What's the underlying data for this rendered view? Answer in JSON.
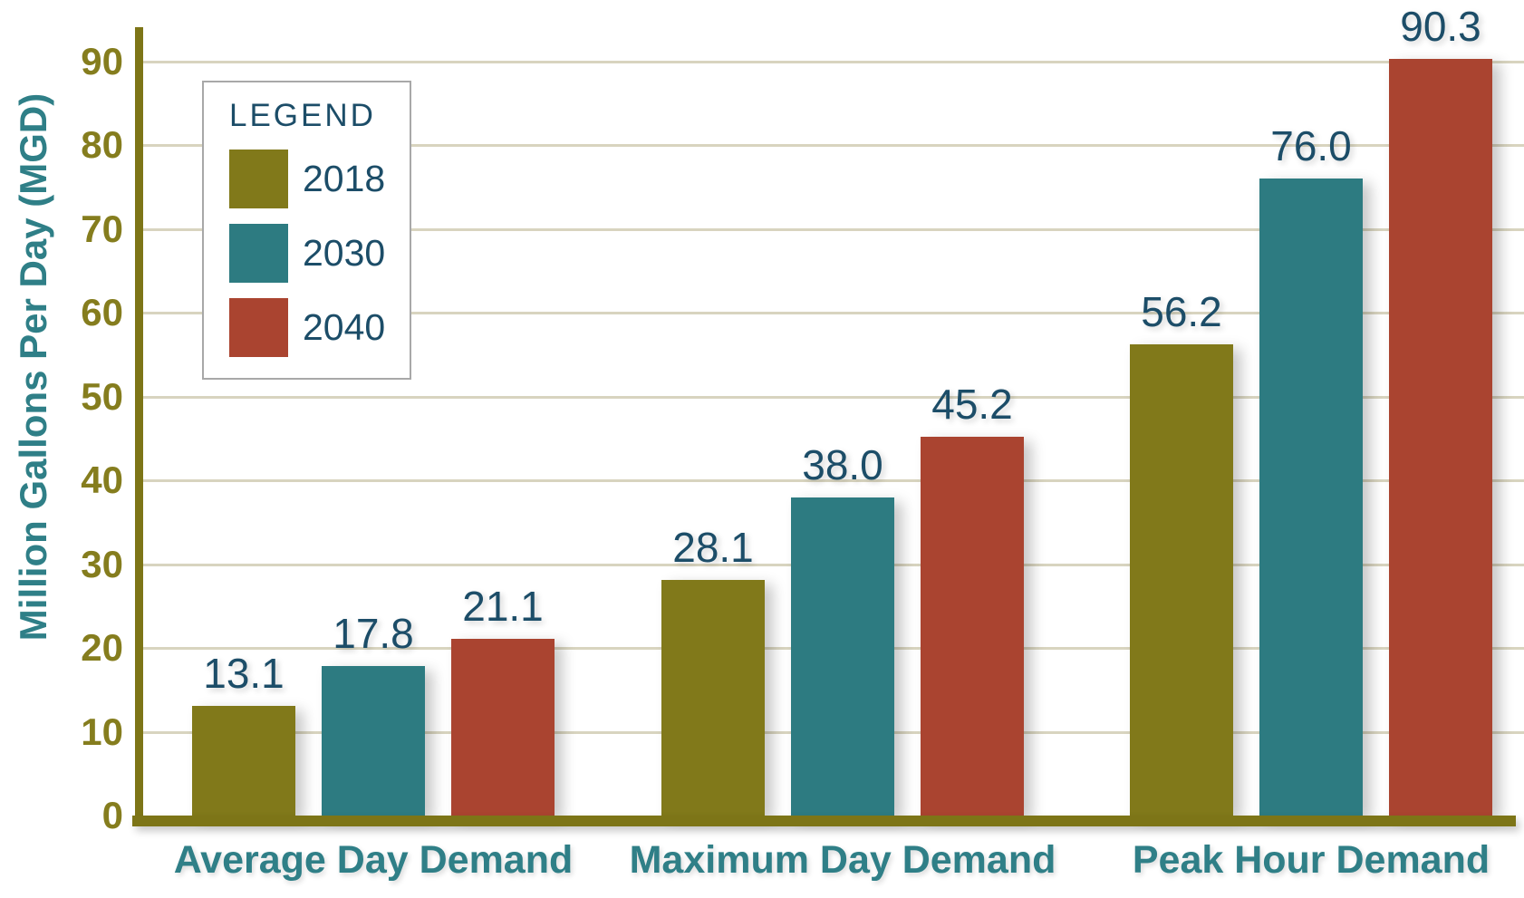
{
  "colors": {
    "background": "#ffffff",
    "axis": "#7d7517",
    "gridline": "#d8d4bf",
    "tick_text": "#857d1e",
    "value_text": "#1c4d68",
    "category_text": "#2f7f87",
    "ytitle_text": "#2f7f87",
    "legend_text": "#1c4d68",
    "legend_border": "#a8a8a8"
  },
  "chart_data": {
    "type": "bar",
    "title": "",
    "ylabel": "Million Gallons Per Day (MGD)",
    "xlabel": "",
    "ylim": [
      0,
      90
    ],
    "grid": true,
    "legend_position": "top-left",
    "legend_title": "LEGEND",
    "categories": [
      "Average Day Demand",
      "Maximum Day Demand",
      "Peak Hour Demand"
    ],
    "ytick_values": [
      0,
      10,
      20,
      30,
      40,
      50,
      60,
      70,
      80,
      90
    ],
    "ytick_labels": [
      "0",
      "10",
      "20",
      "30",
      "40",
      "50",
      "60",
      "70",
      "80",
      "90"
    ],
    "series": [
      {
        "name": "2018",
        "color": "#81791a",
        "values": [
          13.1,
          28.1,
          56.2
        ],
        "labels": [
          "13.1",
          "28.1",
          "56.2"
        ]
      },
      {
        "name": "2030",
        "color": "#2d7b81",
        "values": [
          17.8,
          38.0,
          76.0
        ],
        "labels": [
          "17.8",
          "38.0",
          "76.0"
        ]
      },
      {
        "name": "2040",
        "color": "#aa4430",
        "values": [
          21.1,
          45.2,
          90.3
        ],
        "labels": [
          "21.1",
          "45.2",
          "90.3"
        ]
      }
    ]
  }
}
